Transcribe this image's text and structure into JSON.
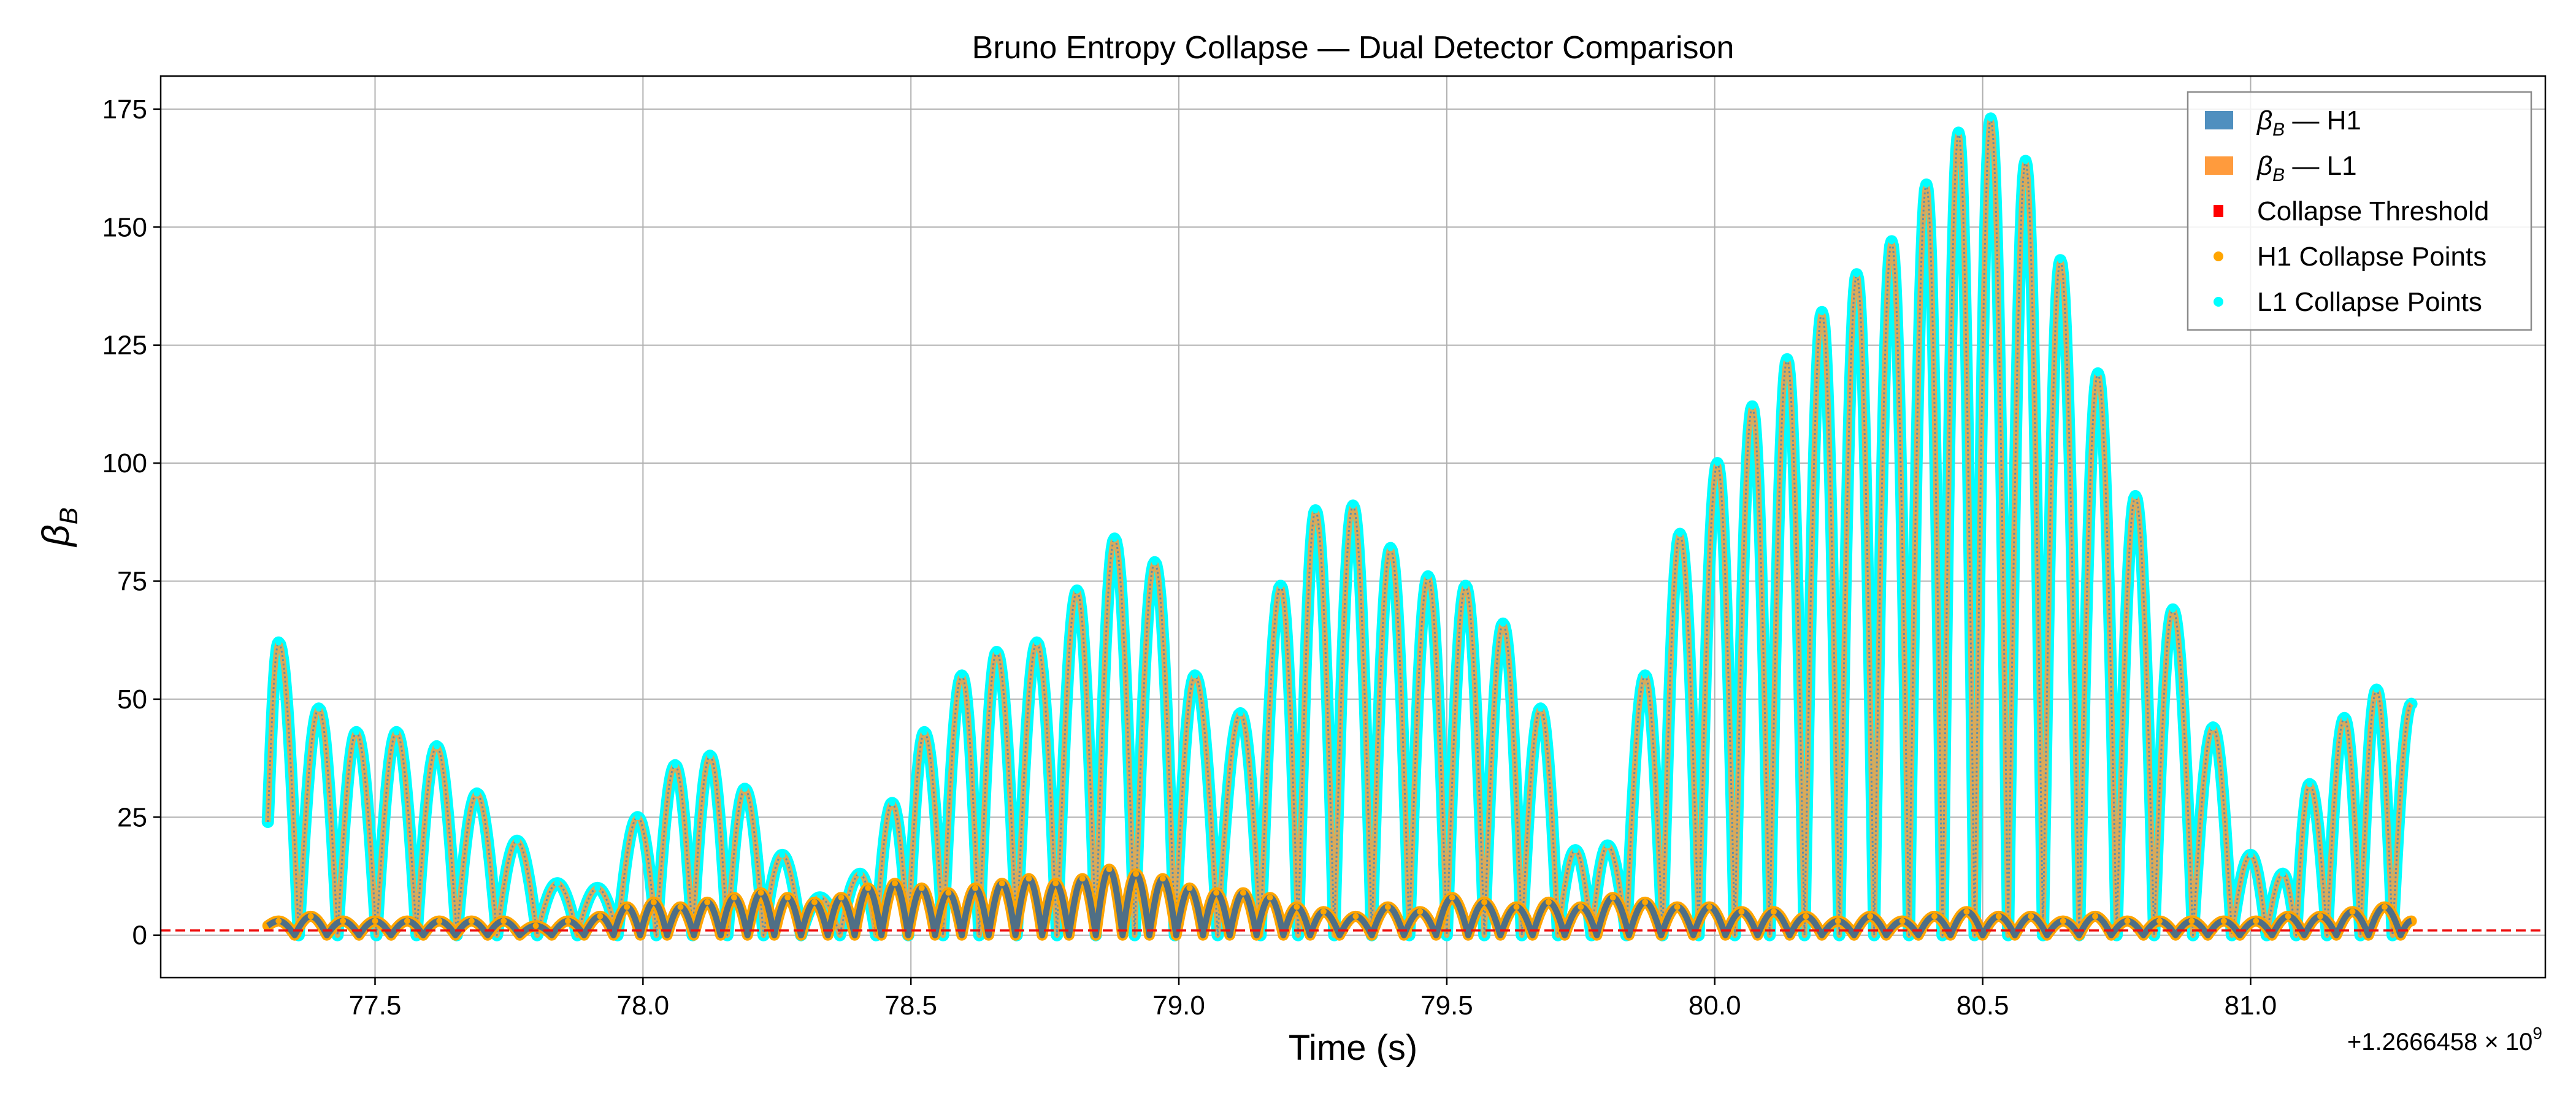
{
  "chart_data": {
    "type": "line",
    "title": "Bruno Entropy Collapse — Dual Detector Comparison",
    "xlabel": "Time (s)",
    "ylabel_main": "β",
    "ylabel_sub": "B",
    "offset_text": "+1.2666458 × 10",
    "offset_exp": "9",
    "xlim": [
      77.1,
      81.55
    ],
    "ylim": [
      -9,
      182
    ],
    "grid": true,
    "legend_position": "top-right",
    "x_ticks": [
      {
        "v": 77.5,
        "label": "77.5"
      },
      {
        "v": 78.0,
        "label": "78.0"
      },
      {
        "v": 78.5,
        "label": "78.5"
      },
      {
        "v": 79.0,
        "label": "79.0"
      },
      {
        "v": 79.5,
        "label": "79.5"
      },
      {
        "v": 80.0,
        "label": "80.0"
      },
      {
        "v": 80.5,
        "label": "80.5"
      },
      {
        "v": 81.0,
        "label": "81.0"
      }
    ],
    "y_ticks": [
      {
        "v": 0,
        "label": "0"
      },
      {
        "v": 25,
        "label": "25"
      },
      {
        "v": 50,
        "label": "50"
      },
      {
        "v": 75,
        "label": "75"
      },
      {
        "v": 100,
        "label": "100"
      },
      {
        "v": 125,
        "label": "125"
      },
      {
        "v": 150,
        "label": "150"
      },
      {
        "v": 175,
        "label": "175"
      }
    ],
    "threshold": {
      "name": "Collapse Threshold",
      "value": 1.0,
      "color": "#ee1111"
    },
    "legend": [
      {
        "key": "h1",
        "main": "β",
        "sub": "B",
        "rest": " — H1",
        "marker": "patch",
        "color": "#4f8fbf"
      },
      {
        "key": "l1",
        "main": "β",
        "sub": "B",
        "rest": " — L1",
        "marker": "patch",
        "color": "#ff9b3d"
      },
      {
        "key": "thr",
        "main": "Collapse Threshold",
        "sub": "",
        "rest": "",
        "marker": "square",
        "color": "#ff0000"
      },
      {
        "key": "h1p",
        "main": "H1 Collapse Points",
        "sub": "",
        "rest": "",
        "marker": "dot",
        "color": "#ffa500"
      },
      {
        "key": "l1p",
        "main": "L1 Collapse Points",
        "sub": "",
        "rest": "",
        "marker": "dot",
        "color": "#00ffff"
      }
    ],
    "series": [
      {
        "name": "L1",
        "color_line": "#5a8fae",
        "color_points": "#00ffff",
        "start": {
          "x": 77.3,
          "y": 24
        },
        "end": {
          "x": 81.3,
          "y": 49
        },
        "peaks": [
          {
            "x": 77.32,
            "y": 62
          },
          {
            "x": 77.395,
            "y": 48
          },
          {
            "x": 77.465,
            "y": 43
          },
          {
            "x": 77.54,
            "y": 43
          },
          {
            "x": 77.615,
            "y": 40
          },
          {
            "x": 77.69,
            "y": 30
          },
          {
            "x": 77.765,
            "y": 20
          },
          {
            "x": 77.84,
            "y": 11
          },
          {
            "x": 77.915,
            "y": 10
          },
          {
            "x": 77.99,
            "y": 25
          },
          {
            "x": 78.06,
            "y": 36
          },
          {
            "x": 78.125,
            "y": 38
          },
          {
            "x": 78.19,
            "y": 31
          },
          {
            "x": 78.26,
            "y": 17
          },
          {
            "x": 78.33,
            "y": 8
          },
          {
            "x": 78.405,
            "y": 13
          },
          {
            "x": 78.465,
            "y": 28
          },
          {
            "x": 78.525,
            "y": 43
          },
          {
            "x": 78.595,
            "y": 55
          },
          {
            "x": 78.66,
            "y": 60
          },
          {
            "x": 78.735,
            "y": 62
          },
          {
            "x": 78.81,
            "y": 73
          },
          {
            "x": 78.88,
            "y": 84
          },
          {
            "x": 78.955,
            "y": 79
          },
          {
            "x": 79.03,
            "y": 55
          },
          {
            "x": 79.115,
            "y": 47
          },
          {
            "x": 79.19,
            "y": 74
          },
          {
            "x": 79.255,
            "y": 90
          },
          {
            "x": 79.325,
            "y": 91
          },
          {
            "x": 79.395,
            "y": 82
          },
          {
            "x": 79.465,
            "y": 76
          },
          {
            "x": 79.535,
            "y": 74
          },
          {
            "x": 79.605,
            "y": 66
          },
          {
            "x": 79.675,
            "y": 48
          },
          {
            "x": 79.74,
            "y": 18
          },
          {
            "x": 79.8,
            "y": 19
          },
          {
            "x": 79.87,
            "y": 55
          },
          {
            "x": 79.935,
            "y": 85
          },
          {
            "x": 80.005,
            "y": 100
          },
          {
            "x": 80.07,
            "y": 112
          },
          {
            "x": 80.135,
            "y": 122
          },
          {
            "x": 80.2,
            "y": 132
          },
          {
            "x": 80.265,
            "y": 140
          },
          {
            "x": 80.33,
            "y": 147
          },
          {
            "x": 80.395,
            "y": 159
          },
          {
            "x": 80.455,
            "y": 170
          },
          {
            "x": 80.515,
            "y": 173
          },
          {
            "x": 80.58,
            "y": 164
          },
          {
            "x": 80.645,
            "y": 143
          },
          {
            "x": 80.715,
            "y": 119
          },
          {
            "x": 80.785,
            "y": 93
          },
          {
            "x": 80.855,
            "y": 69
          },
          {
            "x": 80.93,
            "y": 44
          },
          {
            "x": 81.0,
            "y": 17
          },
          {
            "x": 81.06,
            "y": 13
          },
          {
            "x": 81.11,
            "y": 32
          },
          {
            "x": 81.175,
            "y": 46
          },
          {
            "x": 81.235,
            "y": 52
          }
        ]
      },
      {
        "name": "H1",
        "color_line": "#4f6f86",
        "color_points": "#ffa500",
        "start": {
          "x": 77.3,
          "y": 2
        },
        "end": {
          "x": 81.3,
          "y": 3
        },
        "peaks": [
          {
            "x": 77.32,
            "y": 3
          },
          {
            "x": 77.38,
            "y": 4
          },
          {
            "x": 77.44,
            "y": 3
          },
          {
            "x": 77.5,
            "y": 3
          },
          {
            "x": 77.56,
            "y": 3
          },
          {
            "x": 77.62,
            "y": 3
          },
          {
            "x": 77.68,
            "y": 3
          },
          {
            "x": 77.74,
            "y": 3
          },
          {
            "x": 77.8,
            "y": 2
          },
          {
            "x": 77.86,
            "y": 3
          },
          {
            "x": 77.92,
            "y": 4
          },
          {
            "x": 77.97,
            "y": 6
          },
          {
            "x": 78.02,
            "y": 7
          },
          {
            "x": 78.07,
            "y": 6
          },
          {
            "x": 78.12,
            "y": 7
          },
          {
            "x": 78.17,
            "y": 8
          },
          {
            "x": 78.22,
            "y": 9
          },
          {
            "x": 78.27,
            "y": 8
          },
          {
            "x": 78.32,
            "y": 7
          },
          {
            "x": 78.37,
            "y": 8
          },
          {
            "x": 78.42,
            "y": 10
          },
          {
            "x": 78.47,
            "y": 11
          },
          {
            "x": 78.52,
            "y": 10
          },
          {
            "x": 78.57,
            "y": 9
          },
          {
            "x": 78.62,
            "y": 10
          },
          {
            "x": 78.67,
            "y": 11
          },
          {
            "x": 78.72,
            "y": 12
          },
          {
            "x": 78.77,
            "y": 11
          },
          {
            "x": 78.82,
            "y": 12
          },
          {
            "x": 78.87,
            "y": 14
          },
          {
            "x": 78.92,
            "y": 13
          },
          {
            "x": 78.97,
            "y": 12
          },
          {
            "x": 79.02,
            "y": 10
          },
          {
            "x": 79.07,
            "y": 9
          },
          {
            "x": 79.12,
            "y": 9
          },
          {
            "x": 79.17,
            "y": 8
          },
          {
            "x": 79.22,
            "y": 6
          },
          {
            "x": 79.27,
            "y": 5
          },
          {
            "x": 79.33,
            "y": 4
          },
          {
            "x": 79.39,
            "y": 6
          },
          {
            "x": 79.45,
            "y": 5
          },
          {
            "x": 79.51,
            "y": 8
          },
          {
            "x": 79.57,
            "y": 7
          },
          {
            "x": 79.63,
            "y": 6
          },
          {
            "x": 79.69,
            "y": 7
          },
          {
            "x": 79.75,
            "y": 6
          },
          {
            "x": 79.81,
            "y": 8
          },
          {
            "x": 79.87,
            "y": 7
          },
          {
            "x": 79.93,
            "y": 6
          },
          {
            "x": 79.99,
            "y": 6
          },
          {
            "x": 80.05,
            "y": 5
          },
          {
            "x": 80.11,
            "y": 5
          },
          {
            "x": 80.17,
            "y": 4
          },
          {
            "x": 80.23,
            "y": 3
          },
          {
            "x": 80.29,
            "y": 4
          },
          {
            "x": 80.35,
            "y": 3
          },
          {
            "x": 80.41,
            "y": 4
          },
          {
            "x": 80.47,
            "y": 5
          },
          {
            "x": 80.53,
            "y": 4
          },
          {
            "x": 80.59,
            "y": 4
          },
          {
            "x": 80.65,
            "y": 3
          },
          {
            "x": 80.71,
            "y": 4
          },
          {
            "x": 80.77,
            "y": 3
          },
          {
            "x": 80.83,
            "y": 3
          },
          {
            "x": 80.89,
            "y": 3
          },
          {
            "x": 80.95,
            "y": 3
          },
          {
            "x": 81.01,
            "y": 3
          },
          {
            "x": 81.07,
            "y": 4
          },
          {
            "x": 81.13,
            "y": 4
          },
          {
            "x": 81.19,
            "y": 5
          },
          {
            "x": 81.25,
            "y": 6
          }
        ]
      }
    ]
  }
}
